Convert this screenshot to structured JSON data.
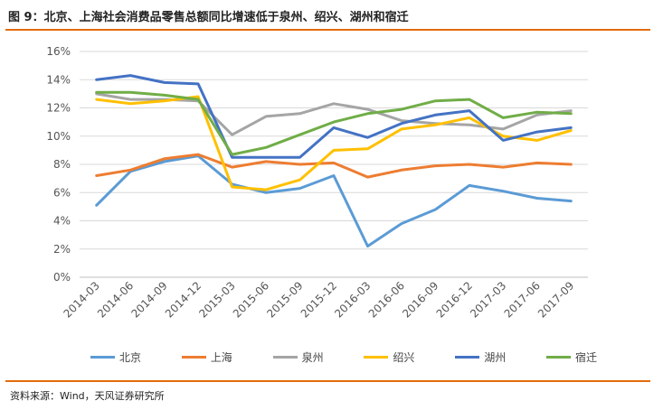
{
  "header": {
    "title": "图 9：北京、上海社会消费品零售总额同比增速低于泉州、绍兴、湖州和宿迁"
  },
  "footer": {
    "source": "资料来源：Wind，天风证券研究所"
  },
  "chart_data": {
    "type": "line",
    "title": "",
    "xlabel": "",
    "ylabel": "",
    "ylim": [
      0,
      16
    ],
    "yticks": [
      "0%",
      "2%",
      "4%",
      "6%",
      "8%",
      "10%",
      "12%",
      "14%",
      "16%"
    ],
    "grid": "horizontal",
    "legend_position": "bottom",
    "categories": [
      "2014-03",
      "2014-06",
      "2014-09",
      "2014-12",
      "2015-03",
      "2015-06",
      "2015-09",
      "2015-12",
      "2016-03",
      "2016-06",
      "2016-09",
      "2016-12",
      "2017-03",
      "2017-06",
      "2017-09"
    ],
    "series": [
      {
        "name": "北京",
        "color": "#5b9bd5",
        "values": [
          5.1,
          7.5,
          8.2,
          8.6,
          6.6,
          6.0,
          6.3,
          7.2,
          2.2,
          3.8,
          4.8,
          6.5,
          6.1,
          5.6,
          5.4
        ]
      },
      {
        "name": "上海",
        "color": "#ed7d31",
        "values": [
          7.2,
          7.6,
          8.4,
          8.7,
          7.8,
          8.2,
          8.0,
          8.1,
          7.1,
          7.6,
          7.9,
          8.0,
          7.8,
          8.1,
          8.0
        ]
      },
      {
        "name": "泉州",
        "color": "#a5a5a5",
        "values": [
          13.0,
          12.6,
          12.6,
          12.5,
          10.1,
          11.4,
          11.6,
          12.3,
          11.9,
          11.1,
          10.9,
          10.8,
          10.5,
          11.5,
          11.8
        ]
      },
      {
        "name": "绍兴",
        "color": "#ffc000",
        "values": [
          12.6,
          12.3,
          12.5,
          12.8,
          6.4,
          6.2,
          6.9,
          9.0,
          9.1,
          10.5,
          10.8,
          11.3,
          10.0,
          9.7,
          10.4
        ]
      },
      {
        "name": "湖州",
        "color": "#4472c4",
        "values": [
          14.0,
          14.3,
          13.8,
          13.7,
          8.5,
          8.5,
          8.5,
          10.6,
          9.9,
          10.9,
          11.5,
          11.8,
          9.7,
          10.3,
          10.6
        ]
      },
      {
        "name": "宿迁",
        "color": "#70ad47",
        "values": [
          13.1,
          13.1,
          12.9,
          12.6,
          8.7,
          9.2,
          10.1,
          11.0,
          11.6,
          11.9,
          12.5,
          12.6,
          11.3,
          11.7,
          11.6
        ]
      }
    ]
  }
}
